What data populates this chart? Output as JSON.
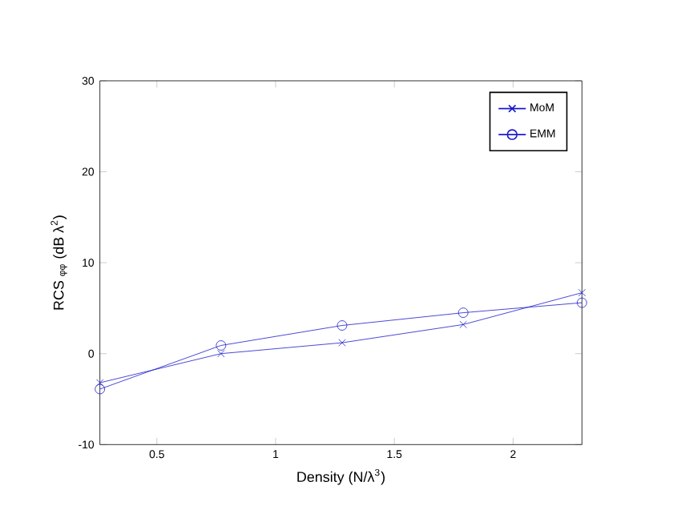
{
  "chart_data": {
    "type": "line",
    "xlabel": "Density (N/λ$^{3}$)",
    "ylabel": "RCS $_{φφ}$ (dB λ$^{2}$)",
    "xlim": [
      0.26,
      2.29
    ],
    "ylim": [
      -10,
      30
    ],
    "xticks": [
      0.5,
      1,
      1.5,
      2
    ],
    "yticks": [
      -10,
      0,
      10,
      20,
      30
    ],
    "x": [
      0.26,
      0.77,
      1.28,
      1.79,
      2.29
    ],
    "grid": false,
    "legend": "top right",
    "line_style": "solid",
    "series": [
      {
        "name": "MoM",
        "color": "#1a1acc",
        "marker": "cross",
        "values": [
          -3.2,
          0,
          1.2,
          3.2,
          6.7
        ]
      },
      {
        "name": "EMM",
        "color": "#1a1acc",
        "marker": "circle",
        "values": [
          -3.9,
          0.9,
          3.1,
          4.5,
          5.6
        ]
      }
    ]
  }
}
